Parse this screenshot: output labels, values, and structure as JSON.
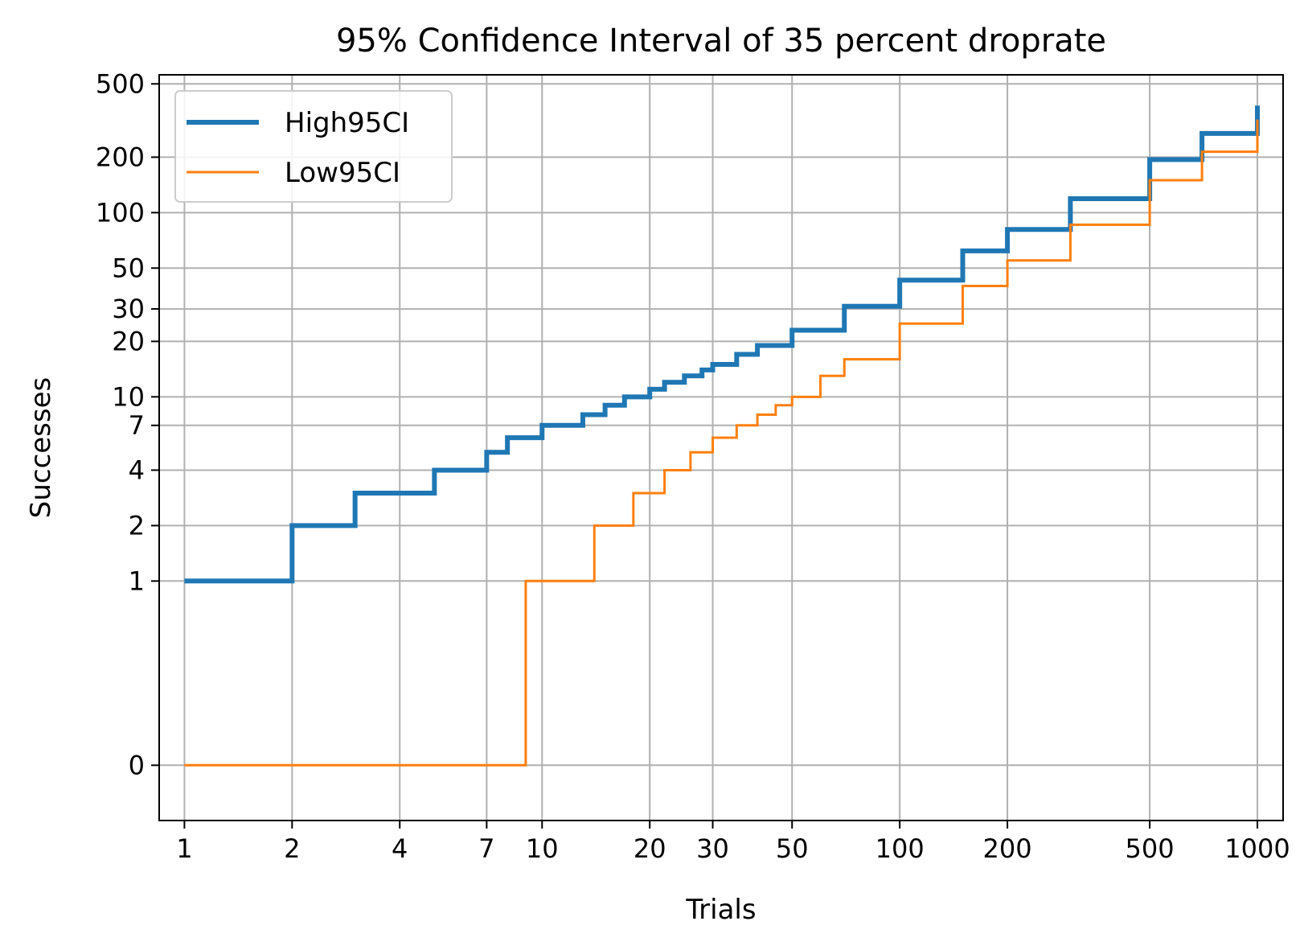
{
  "chart_data": {
    "type": "line",
    "title": "95% Confidence Interval of 35 percent droprate",
    "xlabel": "Trials",
    "ylabel": "Successes",
    "x_scale": "log",
    "y_scale": "symlog",
    "xlim": [
      0.85,
      1180
    ],
    "ylim": [
      -0.3,
      560
    ],
    "x_ticks": [
      1,
      2,
      4,
      7,
      10,
      20,
      30,
      50,
      100,
      200,
      500,
      1000
    ],
    "x_tick_labels": [
      "1",
      "2",
      "4",
      "7",
      "10",
      "20",
      "30",
      "50",
      "100",
      "200",
      "500",
      "1000"
    ],
    "y_ticks": [
      0,
      1,
      2,
      4,
      7,
      10,
      20,
      30,
      50,
      100,
      200,
      500
    ],
    "y_tick_labels": [
      "0",
      "1",
      "2",
      "4",
      "7",
      "10",
      "20",
      "30",
      "50",
      "100",
      "200",
      "500"
    ],
    "grid": true,
    "legend_position": "top-left",
    "drawstyle": "steps-post",
    "series": [
      {
        "name": "High95CI",
        "color": "#1f77b4",
        "line_width": "thick",
        "x": [
          1,
          2,
          3,
          5,
          7,
          8,
          10,
          13,
          15,
          17,
          20,
          22,
          25,
          28,
          30,
          35,
          40,
          50,
          70,
          100,
          150,
          200,
          300,
          500,
          700,
          1000
        ],
        "y": [
          1,
          2,
          3,
          4,
          5,
          6,
          7,
          8,
          9,
          10,
          11,
          12,
          13,
          14,
          15,
          17,
          19,
          23,
          31,
          43,
          62,
          81,
          119,
          194,
          269,
          381
        ]
      },
      {
        "name": "Low95CI",
        "color": "#ff7f0e",
        "line_width": "thin",
        "x": [
          1,
          9,
          14,
          18,
          22,
          26,
          30,
          35,
          40,
          45,
          50,
          60,
          70,
          100,
          150,
          200,
          300,
          500,
          700,
          1000
        ],
        "y": [
          0,
          1,
          2,
          3,
          4,
          5,
          6,
          7,
          8,
          9,
          10,
          13,
          16,
          25,
          40,
          55,
          86,
          150,
          214,
          320
        ]
      }
    ]
  }
}
